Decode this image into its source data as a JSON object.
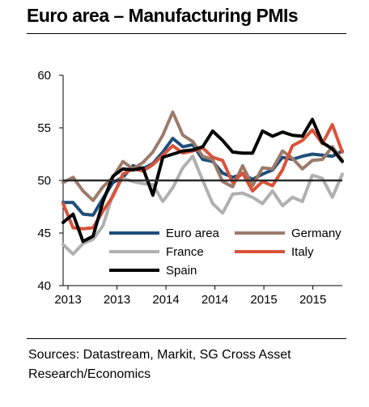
{
  "chart_data": {
    "type": "line",
    "title": "Euro area – Manufacturing PMIs",
    "x_tick_labels": [
      "2013",
      "2013",
      "2014",
      "2014",
      "2015",
      "2015"
    ],
    "ylim": [
      40,
      60
    ],
    "y_ticks": [
      40,
      45,
      50,
      55,
      60
    ],
    "reference_line": 50,
    "legend_placement": "lower-center",
    "grid": false,
    "series": [
      {
        "name": "Euro area",
        "color": "#1f4e79",
        "values": [
          47.9,
          47.9,
          46.8,
          46.7,
          48.3,
          49.8,
          50.3,
          51.4,
          51.1,
          51.6,
          52.7,
          54.0,
          53.2,
          53.4,
          52.0,
          51.8,
          50.7,
          50.3,
          50.6,
          50.1,
          50.6,
          51.0,
          52.2,
          52.0,
          52.3,
          52.5,
          52.4,
          52.3,
          52.8
        ]
      },
      {
        "name": "Germany",
        "color": "#9b7b6b",
        "values": [
          49.8,
          50.3,
          49.0,
          48.1,
          49.4,
          50.3,
          51.8,
          51.1,
          51.7,
          52.7,
          54.3,
          56.5,
          54.3,
          53.7,
          52.3,
          52.0,
          49.9,
          49.4,
          51.4,
          49.5,
          51.2,
          51.1,
          52.8,
          52.1,
          51.1,
          51.9,
          52.0,
          53.2,
          51.9
        ]
      },
      {
        "name": "France",
        "color": "#b0b0b0",
        "values": [
          43.9,
          43.0,
          44.0,
          44.4,
          45.7,
          48.7,
          50.2,
          49.9,
          49.7,
          49.6,
          48.0,
          49.3,
          51.2,
          52.3,
          50.0,
          47.8,
          46.9,
          48.7,
          48.8,
          48.4,
          47.8,
          49.0,
          47.6,
          48.4,
          48.0,
          50.5,
          50.2,
          48.4,
          50.6
        ]
      },
      {
        "name": "Italy",
        "color": "#d9533a",
        "values": [
          47.8,
          45.5,
          45.4,
          45.5,
          47.1,
          48.5,
          50.6,
          51.1,
          50.9,
          51.5,
          52.4,
          53.3,
          52.6,
          52.8,
          53.1,
          52.2,
          51.9,
          49.8,
          50.7,
          49.0,
          49.9,
          49.5,
          51.0,
          53.3,
          53.8,
          54.8,
          53.5,
          55.3,
          52.7
        ]
      },
      {
        "name": "Spain",
        "color": "#000000",
        "values": [
          46.0,
          46.8,
          44.2,
          44.7,
          48.0,
          50.4,
          51.1,
          51.0,
          51.2,
          48.6,
          52.2,
          52.5,
          52.8,
          52.9,
          53.2,
          54.7,
          53.8,
          52.7,
          52.6,
          52.6,
          54.7,
          54.2,
          54.6,
          54.3,
          54.2,
          55.8,
          53.6,
          53.0,
          51.8
        ]
      }
    ]
  },
  "footer": {
    "sources": "Sources: Datastream, Markit, SG Cross Asset Research/Economics"
  }
}
